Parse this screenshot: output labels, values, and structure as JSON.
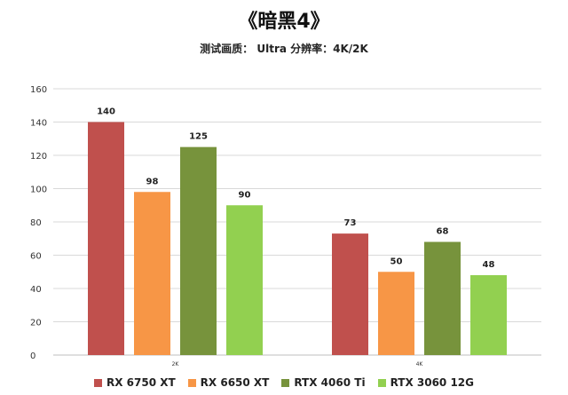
{
  "title": "《暗黑4》",
  "subtitle": "测试画质： Ultra  分辨率：4K/2K",
  "chart_data": {
    "type": "bar",
    "categories": [
      "2K",
      "4K"
    ],
    "series": [
      {
        "name": "RX 6750 XT",
        "color": "#c0504d",
        "values": [
          140,
          73
        ]
      },
      {
        "name": "RX 6650 XT",
        "color": "#f79646",
        "values": [
          98,
          50
        ]
      },
      {
        "name": "RTX 4060 Ti",
        "color": "#77933c",
        "values": [
          125,
          68
        ]
      },
      {
        "name": "RTX 3060 12G",
        "color": "#92d050",
        "values": [
          90,
          48
        ]
      }
    ],
    "ylim": [
      0,
      160
    ],
    "yticks": [
      0,
      20,
      40,
      60,
      80,
      100,
      120,
      140,
      160
    ],
    "grid": true,
    "legend": "bottom"
  }
}
